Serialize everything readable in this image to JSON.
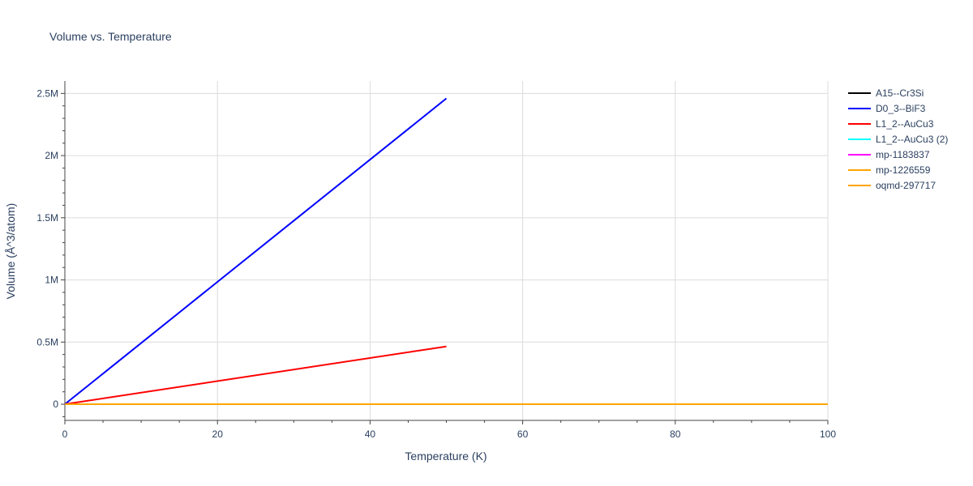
{
  "chart_data": {
    "type": "line",
    "title": "Volume vs. Temperature",
    "xlabel": "Temperature (K)",
    "ylabel": "Volume (Å^3/atom)",
    "xlim": [
      0,
      100
    ],
    "ylim": [
      -130000,
      2600000
    ],
    "x_ticks": [
      0,
      20,
      40,
      60,
      80,
      100
    ],
    "x_tick_labels": [
      "0",
      "20",
      "40",
      "60",
      "80",
      "100"
    ],
    "y_ticks": [
      0,
      500000,
      1000000,
      1500000,
      2000000,
      2500000
    ],
    "y_tick_labels": [
      "0",
      "0.5M",
      "1M",
      "1.5M",
      "2M",
      "2.5M"
    ],
    "grid": true,
    "legend_position": "right",
    "series": [
      {
        "name": "A15--Cr3Si",
        "color": "#000000",
        "x": [
          0,
          100
        ],
        "y": [
          0,
          0
        ]
      },
      {
        "name": "D0_3--BiF3",
        "color": "#0000ff",
        "x": [
          0,
          50
        ],
        "y": [
          0,
          2460000
        ]
      },
      {
        "name": "L1_2--AuCu3",
        "color": "#ff0000",
        "x": [
          0,
          50
        ],
        "y": [
          0,
          465000
        ]
      },
      {
        "name": "L1_2--AuCu3 (2)",
        "color": "#00ffff",
        "x": [
          0,
          100
        ],
        "y": [
          0,
          0
        ]
      },
      {
        "name": "mp-1183837",
        "color": "#ff00ff",
        "x": [
          0,
          100
        ],
        "y": [
          0,
          0
        ]
      },
      {
        "name": "mp-1226559",
        "color": "#ffa500",
        "x": [
          0,
          100
        ],
        "y": [
          0,
          0
        ]
      },
      {
        "name": "oqmd-297717",
        "color": "#ffa500",
        "x": [
          0,
          100
        ],
        "y": [
          0,
          0
        ]
      }
    ]
  }
}
